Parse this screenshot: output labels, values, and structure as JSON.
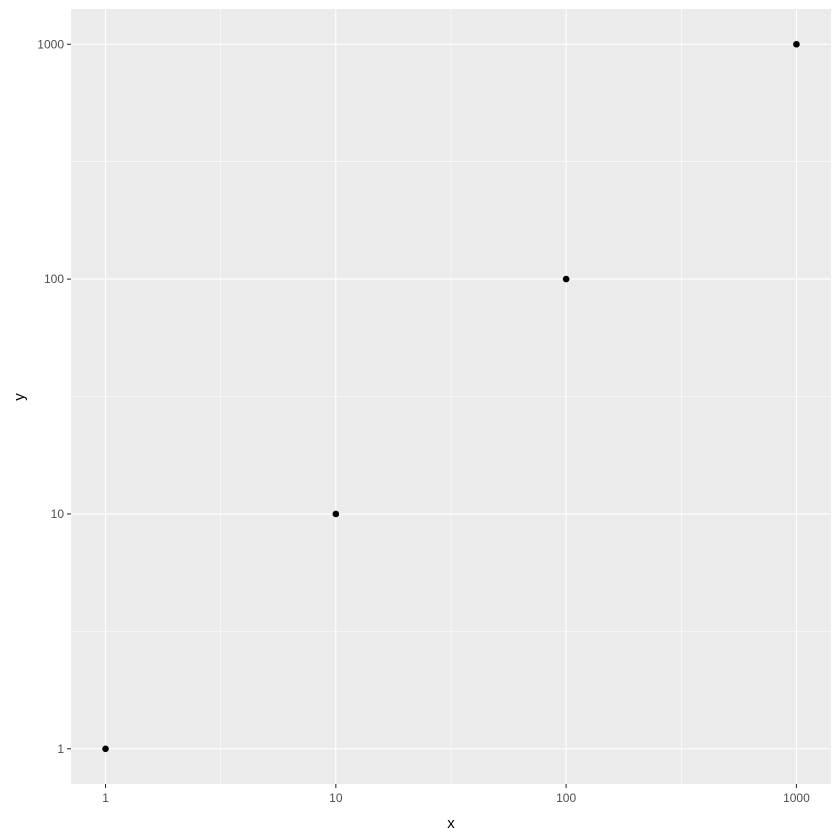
{
  "chart_data": {
    "type": "scatter",
    "title": "",
    "xlabel": "x",
    "ylabel": "y",
    "x_scale": "log10",
    "y_scale": "log10",
    "xlim": [
      0.708,
      1413
    ],
    "ylim": [
      0.708,
      1413
    ],
    "x_ticks": [
      1,
      10,
      100,
      1000
    ],
    "y_ticks": [
      1,
      10,
      100,
      1000
    ],
    "x_tick_labels": [
      "1",
      "10",
      "100",
      "1000"
    ],
    "y_tick_labels": [
      "1",
      "10",
      "100",
      "1000"
    ],
    "grid": true,
    "points": [
      {
        "x": 1,
        "y": 1
      },
      {
        "x": 10,
        "y": 10
      },
      {
        "x": 100,
        "y": 100
      },
      {
        "x": 1000,
        "y": 1000
      }
    ],
    "colors": {
      "panel": "#ebebeb",
      "grid": "#ffffff",
      "point": "#000000"
    }
  }
}
